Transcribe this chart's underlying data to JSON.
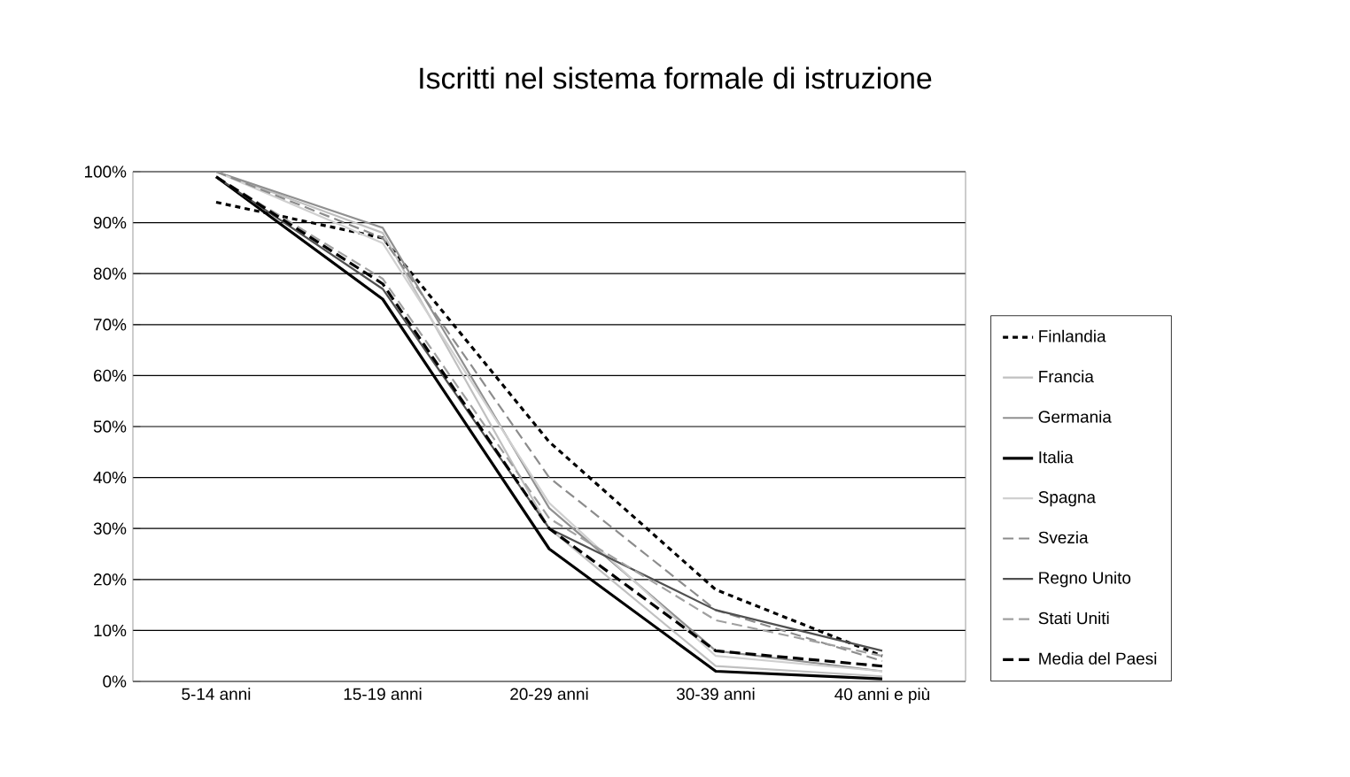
{
  "chart_data": {
    "type": "line",
    "title": "Iscritti nel sistema formale di istruzione",
    "categories": [
      "5-14 anni",
      "15-19 anni",
      "20-29 anni",
      "30-39 anni",
      "40 anni e più"
    ],
    "series": [
      {
        "name": "Finlandia",
        "color": "#000000",
        "line_style": "dotted",
        "values": [
          94,
          87,
          47,
          18,
          5
        ]
      },
      {
        "name": "Francia",
        "color": "#c0c0c0",
        "line_style": "solid",
        "values": [
          100,
          88,
          30,
          3,
          1
        ]
      },
      {
        "name": "Germania",
        "color": "#909090",
        "line_style": "solid",
        "values": [
          100,
          89,
          34,
          6,
          2
        ]
      },
      {
        "name": "Italia",
        "color": "#000000",
        "line_style": "solid",
        "values": [
          99,
          75,
          26,
          2,
          0.5
        ]
      },
      {
        "name": "Spagna",
        "color": "#d0d0d0",
        "line_style": "solid",
        "values": [
          100,
          86,
          35,
          5,
          2
        ]
      },
      {
        "name": "Svezia",
        "color": "#8c8c8c",
        "line_style": "dashed",
        "values": [
          100,
          87,
          40,
          14,
          4
        ]
      },
      {
        "name": "Regno Unito",
        "color": "#505050",
        "line_style": "solid",
        "values": [
          99,
          77,
          30,
          14,
          6
        ]
      },
      {
        "name": "Stati Uniti",
        "color": "#a0a0a0",
        "line_style": "dashed",
        "values": [
          99,
          79,
          32,
          12,
          5
        ]
      },
      {
        "name": "Media del Paesi",
        "color": "#000000",
        "line_style": "dashed",
        "values": [
          99,
          78,
          30,
          6,
          3
        ]
      }
    ],
    "ylim": [
      0,
      100
    ],
    "yticks": [
      {
        "value": 0,
        "label": "0%"
      },
      {
        "value": 10,
        "label": "10%"
      },
      {
        "value": 20,
        "label": "20%"
      },
      {
        "value": 30,
        "label": "30%"
      },
      {
        "value": 40,
        "label": "40%"
      },
      {
        "value": 50,
        "label": "50%"
      },
      {
        "value": 60,
        "label": "60%"
      },
      {
        "value": 70,
        "label": "70%"
      },
      {
        "value": 80,
        "label": "80%"
      },
      {
        "value": 90,
        "label": "90%"
      },
      {
        "value": 100,
        "label": "100%"
      }
    ],
    "grid": "y",
    "legend": "right",
    "marker": "none"
  }
}
